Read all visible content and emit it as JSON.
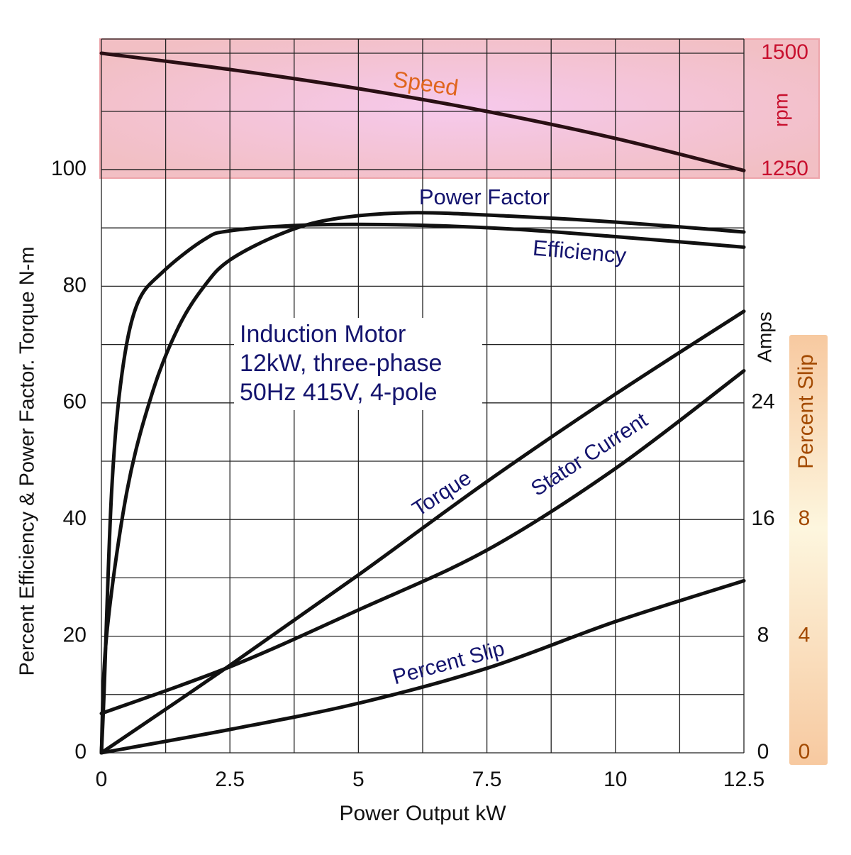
{
  "chart_data": {
    "type": "line",
    "xlabel": "Power Output kW",
    "ylabel": "Percent Efficiency & Power Factor. Torque N-m",
    "y2label": "Amps",
    "y3label": "Percent Slip",
    "y4label": "rpm",
    "annotation": [
      "Induction Motor",
      "12kW, three-phase",
      "50Hz 415V, 4-pole"
    ],
    "xlim": [
      0,
      12.5
    ],
    "xticks": [
      0,
      2.5,
      5,
      7.5,
      10,
      12.5
    ],
    "ylim": [
      0,
      100
    ],
    "yticks": [
      0,
      20,
      40,
      60,
      80,
      100
    ],
    "y2lim": [
      0,
      40
    ],
    "y2ticks": [
      0,
      8,
      16,
      24
    ],
    "y3lim": [
      0,
      20
    ],
    "y3ticks": [
      0,
      4,
      8
    ],
    "y4lim": [
      1250,
      1500
    ],
    "y4ticks": [
      1250,
      1500
    ],
    "grid": true,
    "series": [
      {
        "name": "Speed",
        "color": "#2a0f14",
        "axis": "y4",
        "x": [
          0,
          2.5,
          5,
          7.5,
          10,
          12.5
        ],
        "values": [
          1500,
          1465,
          1424,
          1375,
          1317,
          1248
        ]
      },
      {
        "name": "Power Factor",
        "color": "#111111",
        "axis": "y",
        "x": [
          0,
          0.1,
          0.5,
          1,
          1.5,
          2,
          2.5,
          3.5,
          4.5,
          6,
          8,
          10,
          12.5
        ],
        "values": [
          0,
          20,
          45,
          62,
          73,
          80,
          84.5,
          89,
          91.5,
          92.6,
          92,
          91,
          89.3
        ]
      },
      {
        "name": "Efficiency",
        "color": "#111111",
        "axis": "y",
        "x": [
          0,
          0.05,
          0.2,
          0.4,
          0.7,
          1.2,
          2,
          2.5,
          4,
          6,
          8,
          10,
          12.5
        ],
        "values": [
          0,
          10,
          45,
          65,
          77,
          82.5,
          88,
          89.5,
          90.5,
          90.5,
          89.8,
          88.5,
          86.7
        ]
      },
      {
        "name": "Torque",
        "color": "#111111",
        "axis": "y",
        "x": [
          0,
          2.5,
          5,
          7.5,
          10,
          12.5
        ],
        "values": [
          0,
          15,
          30.5,
          46.5,
          61.5,
          75.7
        ]
      },
      {
        "name": "Stator Current",
        "color": "#111111",
        "axis": "y2",
        "x": [
          0,
          2.5,
          5,
          7.5,
          10,
          12.5
        ],
        "values": [
          2.7,
          5.9,
          9.8,
          13.9,
          19.5,
          26.2
        ]
      },
      {
        "name": "Percent Slip",
        "color": "#111111",
        "axis": "y3",
        "x": [
          0,
          2.5,
          5,
          7.5,
          10,
          12.5
        ],
        "values": [
          0,
          0.8,
          1.7,
          2.9,
          4.5,
          5.9
        ]
      }
    ]
  }
}
